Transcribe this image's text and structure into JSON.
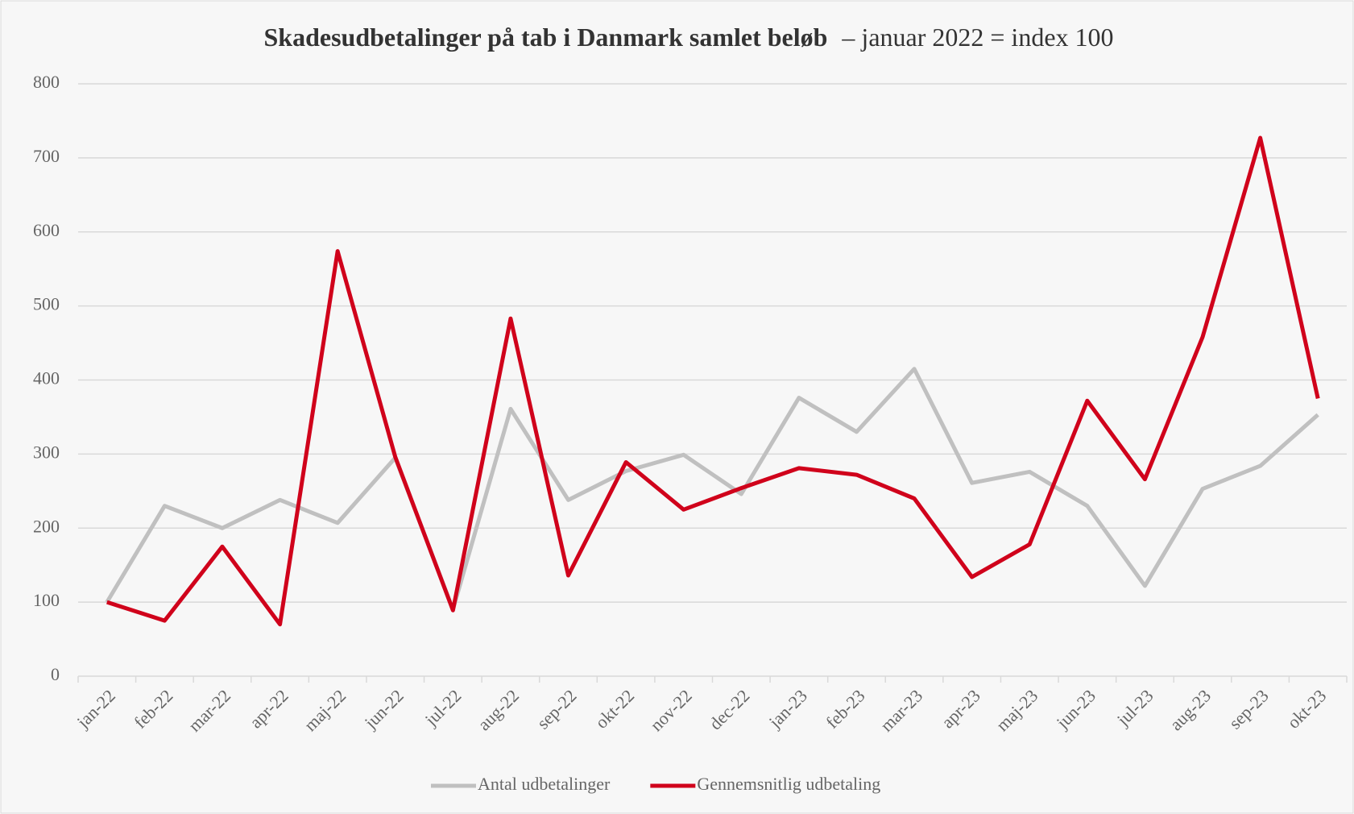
{
  "chart_data": {
    "type": "line",
    "title": "Skadesudbetalinger på tab i Danmark samlet beløb",
    "subtitle": "– januar 2022 = index 100",
    "categories": [
      "jan-22",
      "feb-22",
      "mar-22",
      "apr-22",
      "maj-22",
      "jun-22",
      "jul-22",
      "aug-22",
      "sep-22",
      "okt-22",
      "nov-22",
      "dec-22",
      "jan-23",
      "feb-23",
      "mar-23",
      "apr-23",
      "maj-23",
      "jun-23",
      "jul-23",
      "aug-23",
      "sep-23",
      "okt-23"
    ],
    "series": [
      {
        "name": "Antal udbetalinger",
        "color": "#c0c0c0",
        "values": [
          100,
          230,
          200,
          238,
          207,
          295,
          90,
          361,
          238,
          277,
          299,
          246,
          376,
          330,
          415,
          261,
          276,
          230,
          122,
          253,
          284,
          353
        ]
      },
      {
        "name": "Gennemsnitlig udbetaling",
        "color": "#d0021b",
        "values": [
          100,
          75,
          175,
          70,
          574,
          296,
          89,
          483,
          136,
          289,
          225,
          254,
          281,
          272,
          240,
          134,
          178,
          372,
          266,
          458,
          727,
          375
        ]
      }
    ],
    "ylim": [
      0,
      800
    ],
    "yticks": [
      0,
      100,
      200,
      300,
      400,
      500,
      600,
      700,
      800
    ],
    "grid": true,
    "legend": "bottom"
  }
}
